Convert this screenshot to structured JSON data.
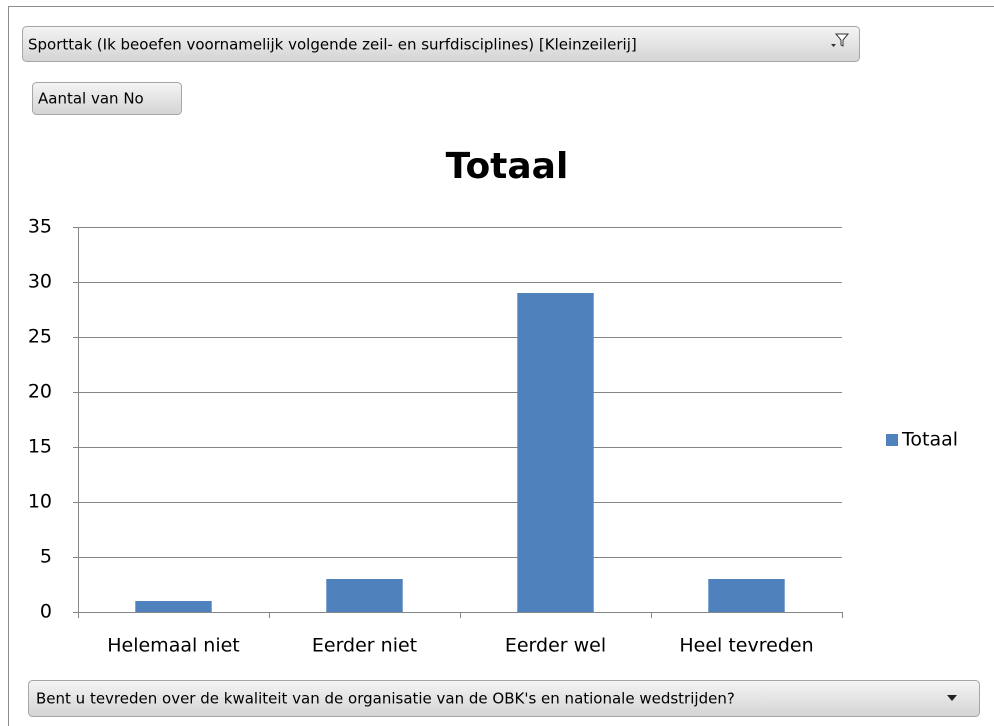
{
  "chart_data": {
    "type": "bar",
    "title": "Totaal",
    "filter_field": "Sporttak (Ik beoefen voornamelijk volgende zeil- en surfdisciplines) [Kleinzeilerij]",
    "value_field": "Aantal van No",
    "axis_field": "Bent u tevreden over de kwaliteit van de organisatie van de OBK's en nationale wedstrijden?",
    "categories": [
      "Helemaal niet",
      "Eerder niet",
      "Eerder wel",
      "Heel tevreden"
    ],
    "series": [
      {
        "name": "Totaal",
        "color": "#4f81bd",
        "values": [
          1,
          3,
          29,
          3
        ]
      }
    ],
    "ylim": [
      0,
      35
    ],
    "yticks": [
      0,
      5,
      10,
      15,
      20,
      25,
      30,
      35
    ],
    "grid": true,
    "legend": "right"
  }
}
